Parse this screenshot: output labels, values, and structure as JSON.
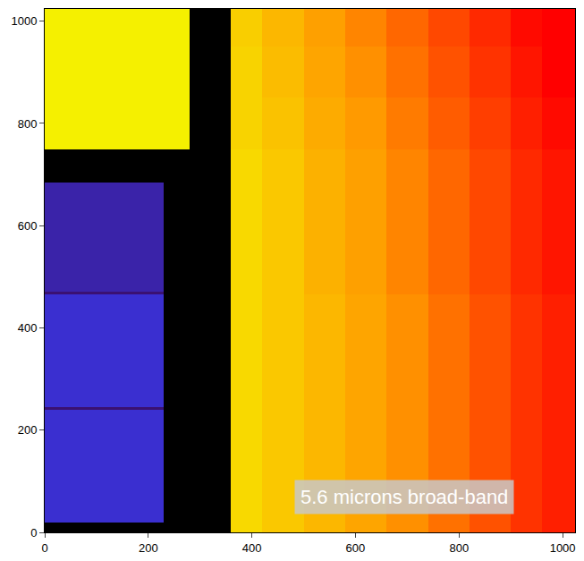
{
  "chart_data": {
    "type": "heatmap",
    "x_bins": [
      0,
      230,
      280,
      360,
      420,
      500,
      580,
      660,
      740,
      820,
      900,
      960,
      1024
    ],
    "y_bins": [
      0,
      20,
      240,
      245,
      465,
      470,
      685,
      750,
      850,
      950,
      1024
    ],
    "cells": [
      [
        0,
        0,
        0,
        74,
        77,
        80,
        83,
        86,
        89,
        92,
        95,
        97
      ],
      [
        30,
        0,
        0,
        74,
        77,
        80,
        83,
        86,
        89,
        92,
        95,
        97
      ],
      [
        18,
        0,
        0,
        74,
        77,
        80,
        83,
        86,
        89,
        92,
        95,
        97
      ],
      [
        30,
        0,
        0,
        74,
        77,
        80,
        83,
        86,
        89,
        92,
        95,
        97
      ],
      [
        18,
        0,
        0,
        74,
        77,
        81,
        84,
        87,
        90,
        93,
        96,
        98
      ],
      [
        25,
        0,
        0,
        74,
        77,
        81,
        84,
        87,
        90,
        93,
        96,
        98
      ],
      [
        0,
        0,
        0,
        74,
        77,
        81,
        84,
        87,
        90,
        93,
        96,
        98
      ],
      [
        70,
        70,
        0,
        75,
        78,
        82,
        85,
        88,
        91,
        94,
        97,
        99
      ],
      [
        70,
        70,
        0,
        75,
        79,
        83,
        86,
        89,
        92,
        95,
        98,
        100
      ],
      [
        70,
        70,
        0,
        76,
        80,
        84,
        87,
        90,
        93,
        96,
        99,
        100
      ]
    ],
    "zlim": [
      0,
      100
    ],
    "xlim": [
      0,
      1024
    ],
    "ylim": [
      0,
      1024
    ],
    "xticks": [
      0,
      200,
      400,
      600,
      800,
      1000
    ],
    "yticks": [
      0,
      200,
      400,
      600,
      800,
      1000
    ],
    "annotations": [
      {
        "text": "5.6 microns broad-band"
      }
    ]
  }
}
